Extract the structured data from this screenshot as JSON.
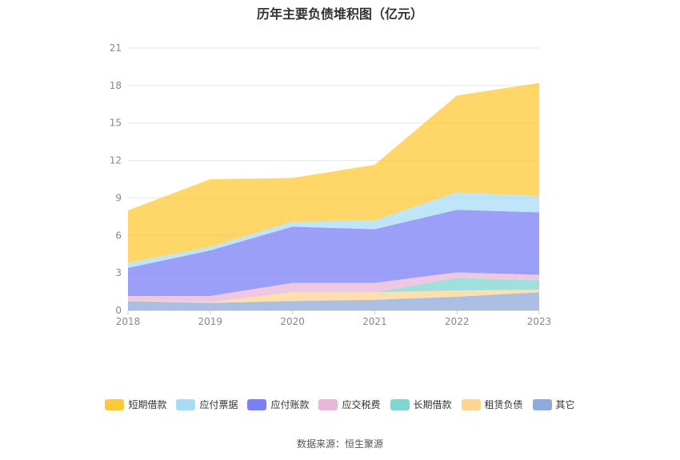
{
  "title": "历年主要负债堆积图（亿元）",
  "source": "数据来源：恒生聚源",
  "chart_data": {
    "type": "area",
    "stacked": true,
    "x": [
      "2018",
      "2019",
      "2020",
      "2021",
      "2022",
      "2023"
    ],
    "ylim": [
      0,
      21
    ],
    "yticks": [
      0,
      3,
      6,
      9,
      12,
      15,
      18,
      21
    ],
    "grid": true,
    "legend_position": "bottom",
    "series": [
      {
        "name": "其它",
        "color": "#8faadc",
        "values": [
          0.75,
          0.6,
          0.75,
          0.85,
          1.1,
          1.45
        ]
      },
      {
        "name": "租赁负债",
        "color": "#ffd591",
        "values": [
          0.05,
          0.05,
          0.7,
          0.6,
          0.5,
          0.2
        ]
      },
      {
        "name": "长期借款",
        "color": "#7fd6d0",
        "values": [
          0,
          0,
          0,
          0,
          1.0,
          0.75
        ]
      },
      {
        "name": "应交税费",
        "color": "#e8b6d6",
        "values": [
          0.35,
          0.5,
          0.75,
          0.75,
          0.45,
          0.45
        ]
      },
      {
        "name": "应付账款",
        "color": "#7b7ff5",
        "values": [
          2.25,
          3.65,
          4.5,
          4.3,
          5.0,
          5.0
        ]
      },
      {
        "name": "应付票据",
        "color": "#a8dcf5",
        "values": [
          0.4,
          0.3,
          0.4,
          0.7,
          1.4,
          1.3
        ]
      },
      {
        "name": "短期借款",
        "color": "#ffc836",
        "values": [
          4.2,
          5.4,
          3.5,
          4.45,
          7.75,
          9.05
        ]
      }
    ],
    "legend_order": [
      "短期借款",
      "应付票据",
      "应付账款",
      "应交税费",
      "长期借款",
      "租赁负债",
      "其它"
    ]
  }
}
